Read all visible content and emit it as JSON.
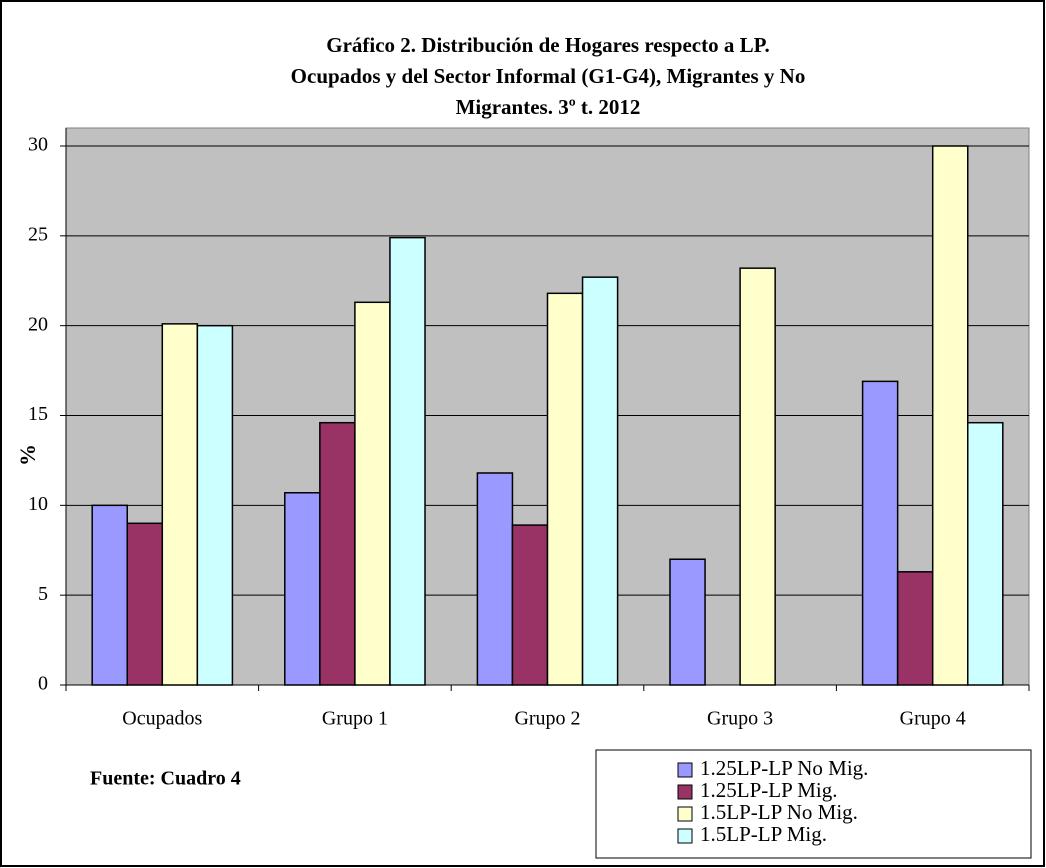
{
  "chart_data": {
    "type": "bar",
    "title": [
      "Gráfico 2. Distribución de Hogares respecto a LP.",
      "Ocupados y del Sector Informal (G1-G4), Migrantes y No",
      "Migrantes. 3º t. 2012"
    ],
    "ylabel": "%",
    "annotation": "Fuente: Cuadro 4",
    "categories": [
      "Ocupados",
      "Grupo 1",
      "Grupo 2",
      "Grupo 3",
      "Grupo 4"
    ],
    "series": [
      {
        "name": "1.25LP-LP No Mig.",
        "color": "#9999ff",
        "values": [
          10,
          10.7,
          11.8,
          7,
          16.9
        ]
      },
      {
        "name": "1.25LP-LP Mig.",
        "color": "#993366",
        "values": [
          9,
          14.6,
          8.9,
          null,
          6.3
        ]
      },
      {
        "name": "1.5LP-LP No Mig.",
        "color": "#ffffcc",
        "values": [
          20.1,
          21.3,
          21.8,
          23.2,
          30
        ]
      },
      {
        "name": "1.5LP-LP Mig.",
        "color": "#ccffff",
        "values": [
          20,
          24.9,
          22.7,
          null,
          14.6
        ]
      }
    ],
    "ylim": [
      0,
      30
    ],
    "yticks": [
      0,
      5,
      10,
      15,
      20,
      25,
      30
    ],
    "grid": true,
    "legend": "bottom-right"
  }
}
